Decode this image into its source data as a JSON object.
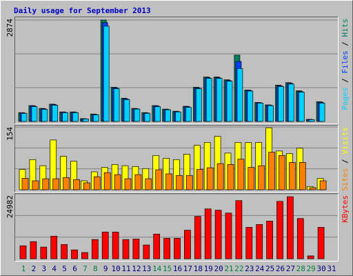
{
  "chart_data": [
    {
      "type": "bar",
      "title": "Daily usage for September 2013",
      "ylim": [
        0,
        2874
      ],
      "yticks": [
        2874
      ],
      "legend_separator": " / ",
      "series": [
        {
          "name": "Hits",
          "color": "#00805c",
          "values": [
            250,
            450,
            370,
            490,
            270,
            270,
            80,
            210,
            2874,
            970,
            660,
            370,
            250,
            450,
            350,
            290,
            430,
            970,
            1260,
            1260,
            1180,
            1880,
            890,
            540,
            470,
            1030,
            1100,
            870,
            60,
            560,
            0
          ]
        },
        {
          "name": "Files",
          "color": "#0040ff",
          "values": [
            240,
            440,
            360,
            480,
            260,
            260,
            75,
            200,
            2800,
            950,
            640,
            360,
            240,
            440,
            340,
            280,
            420,
            950,
            1240,
            1240,
            1160,
            1700,
            880,
            530,
            460,
            1010,
            1080,
            850,
            55,
            540,
            0
          ]
        },
        {
          "name": "Pages",
          "color": "#00d0ff",
          "values": [
            230,
            420,
            340,
            460,
            250,
            250,
            70,
            190,
            2700,
            930,
            620,
            350,
            230,
            420,
            330,
            270,
            400,
            930,
            1220,
            1220,
            1140,
            1500,
            860,
            520,
            450,
            990,
            1060,
            830,
            50,
            520,
            0
          ]
        }
      ]
    },
    {
      "type": "bar",
      "ylim": [
        0,
        154
      ],
      "yticks": [
        154
      ],
      "legend_separator": " / ",
      "series": [
        {
          "name": "Visits",
          "color": "#ffff00",
          "values": [
            50,
            74,
            59,
            122,
            82,
            70,
            22,
            44,
            55,
            62,
            59,
            57,
            52,
            84,
            77,
            74,
            87,
            109,
            116,
            131,
            90,
            116,
            116,
            116,
            152,
            95,
            89,
            102,
            8,
            28,
            0
          ]
        },
        {
          "name": "Sites",
          "color": "#ff8000",
          "values": [
            28,
            22,
            27,
            27,
            30,
            25,
            17,
            32,
            42,
            37,
            27,
            37,
            27,
            49,
            39,
            35,
            35,
            50,
            54,
            64,
            62,
            75,
            55,
            59,
            92,
            84,
            67,
            67,
            5,
            22,
            0
          ]
        }
      ]
    },
    {
      "type": "bar",
      "ylim": [
        0,
        24982
      ],
      "yticks": [
        24982
      ],
      "categories": [
        "1",
        "2",
        "3",
        "4",
        "5",
        "6",
        "7",
        "8",
        "9",
        "10",
        "11",
        "12",
        "13",
        "14",
        "15",
        "16",
        "17",
        "18",
        "19",
        "20",
        "21",
        "22",
        "23",
        "24",
        "25",
        "26",
        "27",
        "28",
        "29",
        "30",
        "31"
      ],
      "category_colors": [
        "#008040",
        "#000080",
        "#000080",
        "#000080",
        "#000080",
        "#000080",
        "#008040",
        "#008040",
        "#000080",
        "#000080",
        "#000080",
        "#000080",
        "#000080",
        "#008040",
        "#008040",
        "#000080",
        "#000080",
        "#000080",
        "#000080",
        "#000080",
        "#008040",
        "#008040",
        "#000080",
        "#000080",
        "#000080",
        "#000080",
        "#000080",
        "#008040",
        "#008040",
        "#000080",
        "#000080"
      ],
      "series": [
        {
          "name": "KBytes",
          "color": "#ff0000",
          "values": [
            5000,
            6600,
            4500,
            8700,
            5500,
            3400,
            2400,
            7400,
            10300,
            10300,
            7400,
            7600,
            5300,
            9500,
            7900,
            7900,
            11000,
            16300,
            19200,
            18700,
            17600,
            22400,
            12100,
            13200,
            14500,
            22100,
            23900,
            15500,
            1100,
            12100,
            0
          ]
        }
      ]
    }
  ]
}
